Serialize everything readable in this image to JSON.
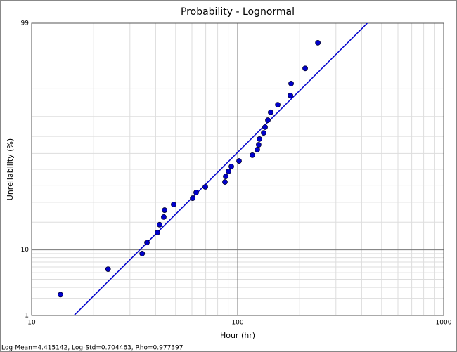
{
  "chart_data": {
    "type": "probability-scatter",
    "title": "Probability - Lognormal",
    "x_label": "Hour (hr)",
    "y_label": "Unreliability (%)",
    "x_scale": "log",
    "y_scale": "normal-probability",
    "xlim": [
      10,
      1000
    ],
    "xticks": [
      10,
      100,
      1000
    ],
    "xminor": [
      20,
      30,
      40,
      50,
      60,
      70,
      80,
      90,
      200,
      300,
      400,
      500,
      600,
      700,
      800,
      900
    ],
    "ylim": [
      1,
      99
    ],
    "yticks": [
      1,
      10,
      99
    ],
    "yminor": [
      2,
      3,
      4,
      5,
      6,
      7,
      8,
      9,
      20,
      30,
      40,
      50,
      60,
      70,
      80,
      90
    ],
    "grid": true,
    "series": [
      {
        "color": "#0000cc",
        "x": [
          13.8,
          23.5,
          34.4,
          36.3,
          40.8,
          41.8,
          43.8,
          44.2,
          48.9,
          60.5,
          62.9,
          69.7,
          86.8,
          87.5,
          90.3,
          93.2,
          101.6,
          117.9,
          124.6,
          126.5,
          127.6,
          133.7,
          135.9,
          140.2,
          144.6,
          156.6,
          180.4,
          181.8,
          212.7,
          245.2
        ],
        "values": [
          2.3,
          5.6,
          9.0,
          12.2,
          15.7,
          18.9,
          22.4,
          25.8,
          28.8,
          32.3,
          35.6,
          39.0,
          42.0,
          45.5,
          48.7,
          51.8,
          55.3,
          58.9,
          62.3,
          65.2,
          68.5,
          71.9,
          74.9,
          78.3,
          81.8,
          84.8,
          88.0,
          91.4,
          94.6,
          97.8
        ]
      }
    ],
    "fit": {
      "log_mean": 4.415142,
      "log_std": 0.704463,
      "color": "#0000cc"
    },
    "footer": "Log-Mean=4.415142, Log-Std=0.704463, Rho=0.977397"
  }
}
